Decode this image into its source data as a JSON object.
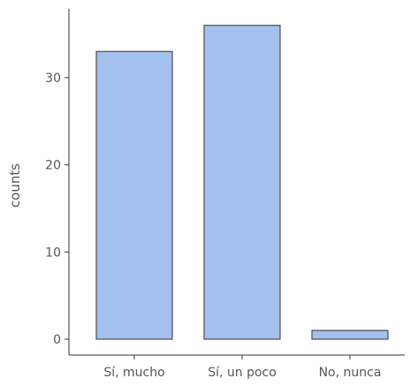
{
  "chart_data": {
    "type": "bar",
    "categories": [
      "Sí, mucho",
      "Sí, un poco",
      "No, nunca"
    ],
    "values": [
      33,
      36,
      1
    ],
    "xlabel": "",
    "ylabel": "counts",
    "ylim": [
      0,
      38
    ],
    "yticks": [
      0,
      10,
      20,
      30
    ],
    "grid": false,
    "bar_color": "#a4c0ee",
    "bar_edge_color": "#4d4d4d",
    "axis_color": "#333333",
    "text_color": "#555555"
  }
}
